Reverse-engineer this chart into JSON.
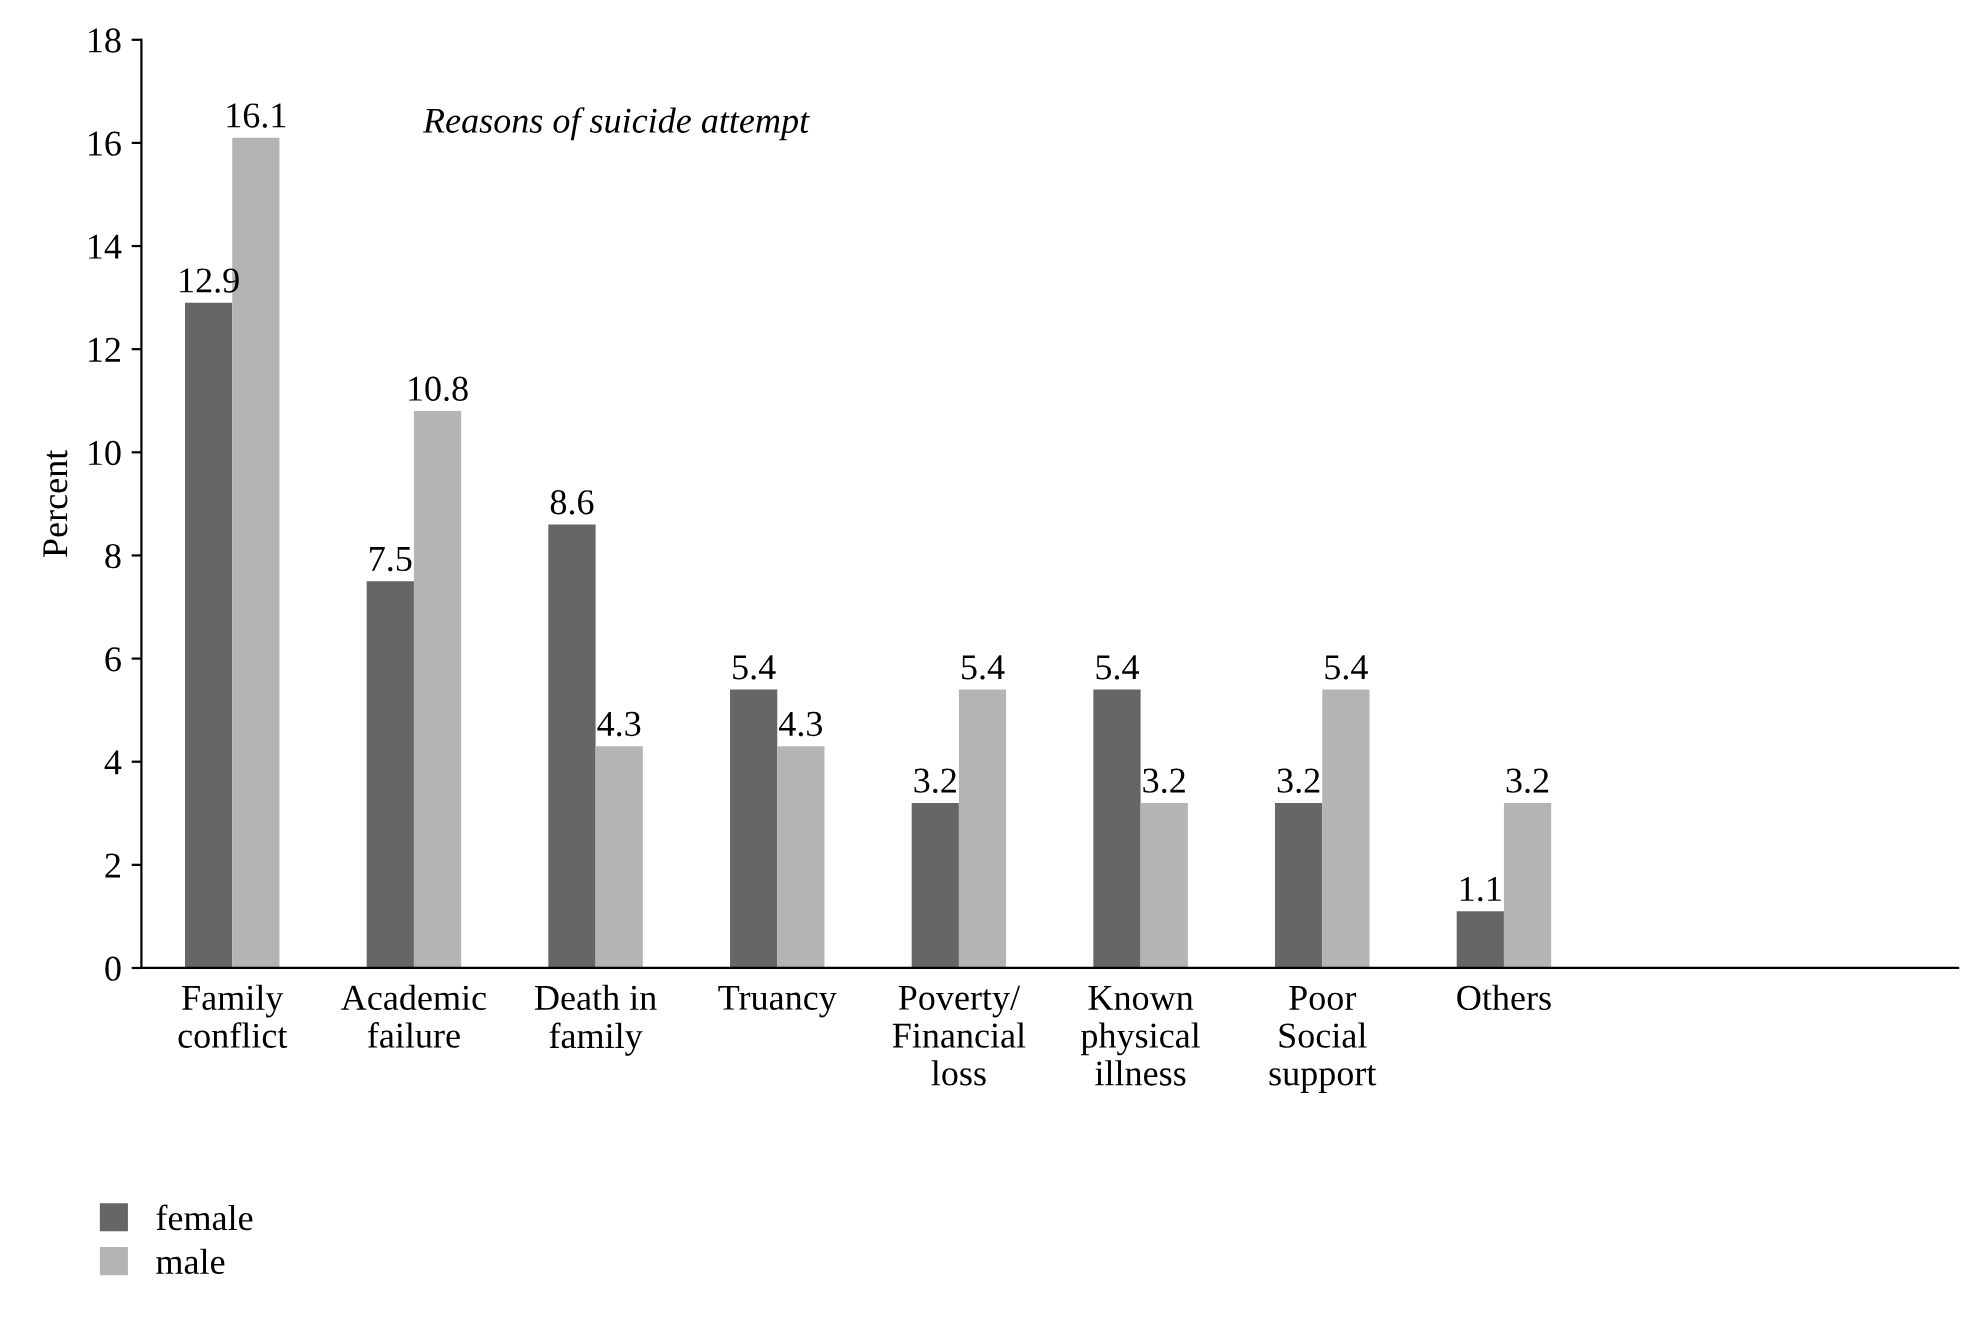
{
  "chart_data": {
    "type": "bar",
    "ylabel": "Percent",
    "annotations": [
      "Reasons of suicide attempt"
    ],
    "categories": [
      "Family\nconflict",
      "Academic\nfailure",
      "Death in\nfamily",
      "Truancy",
      "Poverty/\nFinancial\nloss",
      "Known\nphysical\nillness",
      "Poor\nSocial\nsupport",
      "Others",
      null,
      null
    ],
    "series": [
      {
        "name": "female",
        "color": "#666666",
        "values": [
          12.9,
          7.5,
          8.6,
          5.4,
          3.2,
          5.4,
          3.2,
          1.1,
          null,
          null
        ]
      },
      {
        "name": "male",
        "color": "#b4b4b4",
        "values": [
          16.1,
          10.8,
          4.3,
          4.3,
          5.4,
          3.2,
          5.4,
          3.2,
          null,
          null
        ]
      }
    ],
    "ylim": [
      0,
      18
    ],
    "yticks": [
      0,
      2,
      4,
      6,
      8,
      10,
      12,
      14,
      16,
      18
    ],
    "data_labels": true,
    "legend": "bottom left",
    "grid": false
  }
}
